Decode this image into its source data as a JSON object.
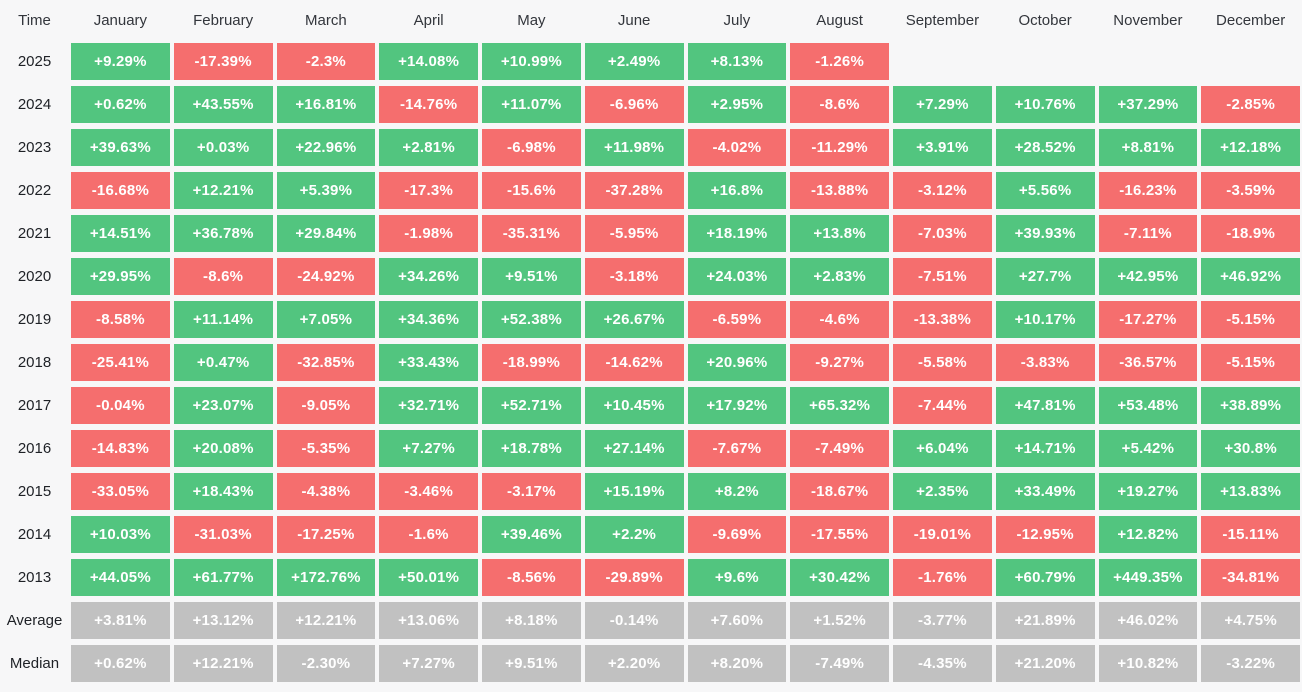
{
  "colors": {
    "positive": "#52c57f",
    "negative": "#f56e6e",
    "summary": "#c1c1c1",
    "background": "#f7f7f8",
    "cell_text": "#ffffff",
    "header_text": "#33363c",
    "label_text": "#1e2126"
  },
  "table": {
    "corner_label": "Time",
    "months": [
      "January",
      "February",
      "March",
      "April",
      "May",
      "June",
      "July",
      "August",
      "September",
      "October",
      "November",
      "December"
    ],
    "rows": [
      {
        "label": "2025",
        "type": "year",
        "values": [
          "+9.29%",
          "-17.39%",
          "-2.3%",
          "+14.08%",
          "+10.99%",
          "+2.49%",
          "+8.13%",
          "-1.26%",
          "",
          "",
          "",
          ""
        ]
      },
      {
        "label": "2024",
        "type": "year",
        "values": [
          "+0.62%",
          "+43.55%",
          "+16.81%",
          "-14.76%",
          "+11.07%",
          "-6.96%",
          "+2.95%",
          "-8.6%",
          "+7.29%",
          "+10.76%",
          "+37.29%",
          "-2.85%"
        ]
      },
      {
        "label": "2023",
        "type": "year",
        "values": [
          "+39.63%",
          "+0.03%",
          "+22.96%",
          "+2.81%",
          "-6.98%",
          "+11.98%",
          "-4.02%",
          "-11.29%",
          "+3.91%",
          "+28.52%",
          "+8.81%",
          "+12.18%"
        ]
      },
      {
        "label": "2022",
        "type": "year",
        "values": [
          "-16.68%",
          "+12.21%",
          "+5.39%",
          "-17.3%",
          "-15.6%",
          "-37.28%",
          "+16.8%",
          "-13.88%",
          "-3.12%",
          "+5.56%",
          "-16.23%",
          "-3.59%"
        ]
      },
      {
        "label": "2021",
        "type": "year",
        "values": [
          "+14.51%",
          "+36.78%",
          "+29.84%",
          "-1.98%",
          "-35.31%",
          "-5.95%",
          "+18.19%",
          "+13.8%",
          "-7.03%",
          "+39.93%",
          "-7.11%",
          "-18.9%"
        ]
      },
      {
        "label": "2020",
        "type": "year",
        "values": [
          "+29.95%",
          "-8.6%",
          "-24.92%",
          "+34.26%",
          "+9.51%",
          "-3.18%",
          "+24.03%",
          "+2.83%",
          "-7.51%",
          "+27.7%",
          "+42.95%",
          "+46.92%"
        ]
      },
      {
        "label": "2019",
        "type": "year",
        "values": [
          "-8.58%",
          "+11.14%",
          "+7.05%",
          "+34.36%",
          "+52.38%",
          "+26.67%",
          "-6.59%",
          "-4.6%",
          "-13.38%",
          "+10.17%",
          "-17.27%",
          "-5.15%"
        ]
      },
      {
        "label": "2018",
        "type": "year",
        "values": [
          "-25.41%",
          "+0.47%",
          "-32.85%",
          "+33.43%",
          "-18.99%",
          "-14.62%",
          "+20.96%",
          "-9.27%",
          "-5.58%",
          "-3.83%",
          "-36.57%",
          "-5.15%"
        ]
      },
      {
        "label": "2017",
        "type": "year",
        "values": [
          "-0.04%",
          "+23.07%",
          "-9.05%",
          "+32.71%",
          "+52.71%",
          "+10.45%",
          "+17.92%",
          "+65.32%",
          "-7.44%",
          "+47.81%",
          "+53.48%",
          "+38.89%"
        ]
      },
      {
        "label": "2016",
        "type": "year",
        "values": [
          "-14.83%",
          "+20.08%",
          "-5.35%",
          "+7.27%",
          "+18.78%",
          "+27.14%",
          "-7.67%",
          "-7.49%",
          "+6.04%",
          "+14.71%",
          "+5.42%",
          "+30.8%"
        ]
      },
      {
        "label": "2015",
        "type": "year",
        "values": [
          "-33.05%",
          "+18.43%",
          "-4.38%",
          "-3.46%",
          "-3.17%",
          "+15.19%",
          "+8.2%",
          "-18.67%",
          "+2.35%",
          "+33.49%",
          "+19.27%",
          "+13.83%"
        ]
      },
      {
        "label": "2014",
        "type": "year",
        "values": [
          "+10.03%",
          "-31.03%",
          "-17.25%",
          "-1.6%",
          "+39.46%",
          "+2.2%",
          "-9.69%",
          "-17.55%",
          "-19.01%",
          "-12.95%",
          "+12.82%",
          "-15.11%"
        ]
      },
      {
        "label": "2013",
        "type": "year",
        "values": [
          "+44.05%",
          "+61.77%",
          "+172.76%",
          "+50.01%",
          "-8.56%",
          "-29.89%",
          "+9.6%",
          "+30.42%",
          "-1.76%",
          "+60.79%",
          "+449.35%",
          "-34.81%"
        ]
      },
      {
        "label": "Average",
        "type": "summary",
        "values": [
          "+3.81%",
          "+13.12%",
          "+12.21%",
          "+13.06%",
          "+8.18%",
          "-0.14%",
          "+7.60%",
          "+1.52%",
          "-3.77%",
          "+21.89%",
          "+46.02%",
          "+4.75%"
        ]
      },
      {
        "label": "Median",
        "type": "summary",
        "values": [
          "+0.62%",
          "+12.21%",
          "-2.30%",
          "+7.27%",
          "+9.51%",
          "+2.20%",
          "+8.20%",
          "-7.49%",
          "-4.35%",
          "+21.20%",
          "+10.82%",
          "-3.22%"
        ]
      }
    ]
  },
  "chart_data": {
    "type": "heatmap",
    "x_categories": [
      "January",
      "February",
      "March",
      "April",
      "May",
      "June",
      "July",
      "August",
      "September",
      "October",
      "November",
      "December"
    ],
    "y_categories": [
      "2025",
      "2024",
      "2023",
      "2022",
      "2021",
      "2020",
      "2019",
      "2018",
      "2017",
      "2016",
      "2015",
      "2014",
      "2013",
      "Average",
      "Median"
    ],
    "units": "%",
    "values_percent": [
      [
        9.29,
        -17.39,
        -2.3,
        14.08,
        10.99,
        2.49,
        8.13,
        -1.26,
        null,
        null,
        null,
        null
      ],
      [
        0.62,
        43.55,
        16.81,
        -14.76,
        11.07,
        -6.96,
        2.95,
        -8.6,
        7.29,
        10.76,
        37.29,
        -2.85
      ],
      [
        39.63,
        0.03,
        22.96,
        2.81,
        -6.98,
        11.98,
        -4.02,
        -11.29,
        3.91,
        28.52,
        8.81,
        12.18
      ],
      [
        -16.68,
        12.21,
        5.39,
        -17.3,
        -15.6,
        -37.28,
        16.8,
        -13.88,
        -3.12,
        5.56,
        -16.23,
        -3.59
      ],
      [
        14.51,
        36.78,
        29.84,
        -1.98,
        -35.31,
        -5.95,
        18.19,
        13.8,
        -7.03,
        39.93,
        -7.11,
        -18.9
      ],
      [
        29.95,
        -8.6,
        -24.92,
        34.26,
        9.51,
        -3.18,
        24.03,
        2.83,
        -7.51,
        27.7,
        42.95,
        46.92
      ],
      [
        -8.58,
        11.14,
        7.05,
        34.36,
        52.38,
        26.67,
        -6.59,
        -4.6,
        -13.38,
        10.17,
        -17.27,
        -5.15
      ],
      [
        -25.41,
        0.47,
        -32.85,
        33.43,
        -18.99,
        -14.62,
        20.96,
        -9.27,
        -5.58,
        -3.83,
        -36.57,
        -5.15
      ],
      [
        -0.04,
        23.07,
        -9.05,
        32.71,
        52.71,
        10.45,
        17.92,
        65.32,
        -7.44,
        47.81,
        53.48,
        38.89
      ],
      [
        -14.83,
        20.08,
        -5.35,
        7.27,
        18.78,
        27.14,
        -7.67,
        -7.49,
        6.04,
        14.71,
        5.42,
        30.8
      ],
      [
        -33.05,
        18.43,
        -4.38,
        -3.46,
        -3.17,
        15.19,
        8.2,
        -18.67,
        2.35,
        33.49,
        19.27,
        13.83
      ],
      [
        10.03,
        -31.03,
        -17.25,
        -1.6,
        39.46,
        2.2,
        -9.69,
        -17.55,
        -19.01,
        -12.95,
        12.82,
        -15.11
      ],
      [
        44.05,
        61.77,
        172.76,
        50.01,
        -8.56,
        -29.89,
        9.6,
        30.42,
        -1.76,
        60.79,
        449.35,
        -34.81
      ],
      [
        3.81,
        13.12,
        12.21,
        13.06,
        8.18,
        -0.14,
        7.6,
        1.52,
        -3.77,
        21.89,
        46.02,
        4.75
      ],
      [
        0.62,
        12.21,
        -2.3,
        7.27,
        9.51,
        2.2,
        8.2,
        -7.49,
        -4.35,
        21.2,
        10.82,
        -3.22
      ]
    ],
    "color_coding": {
      "positive": "#52c57f",
      "negative": "#f56e6e",
      "summary_rows": "#c1c1c1"
    },
    "legend_position": "none",
    "grid": false
  }
}
